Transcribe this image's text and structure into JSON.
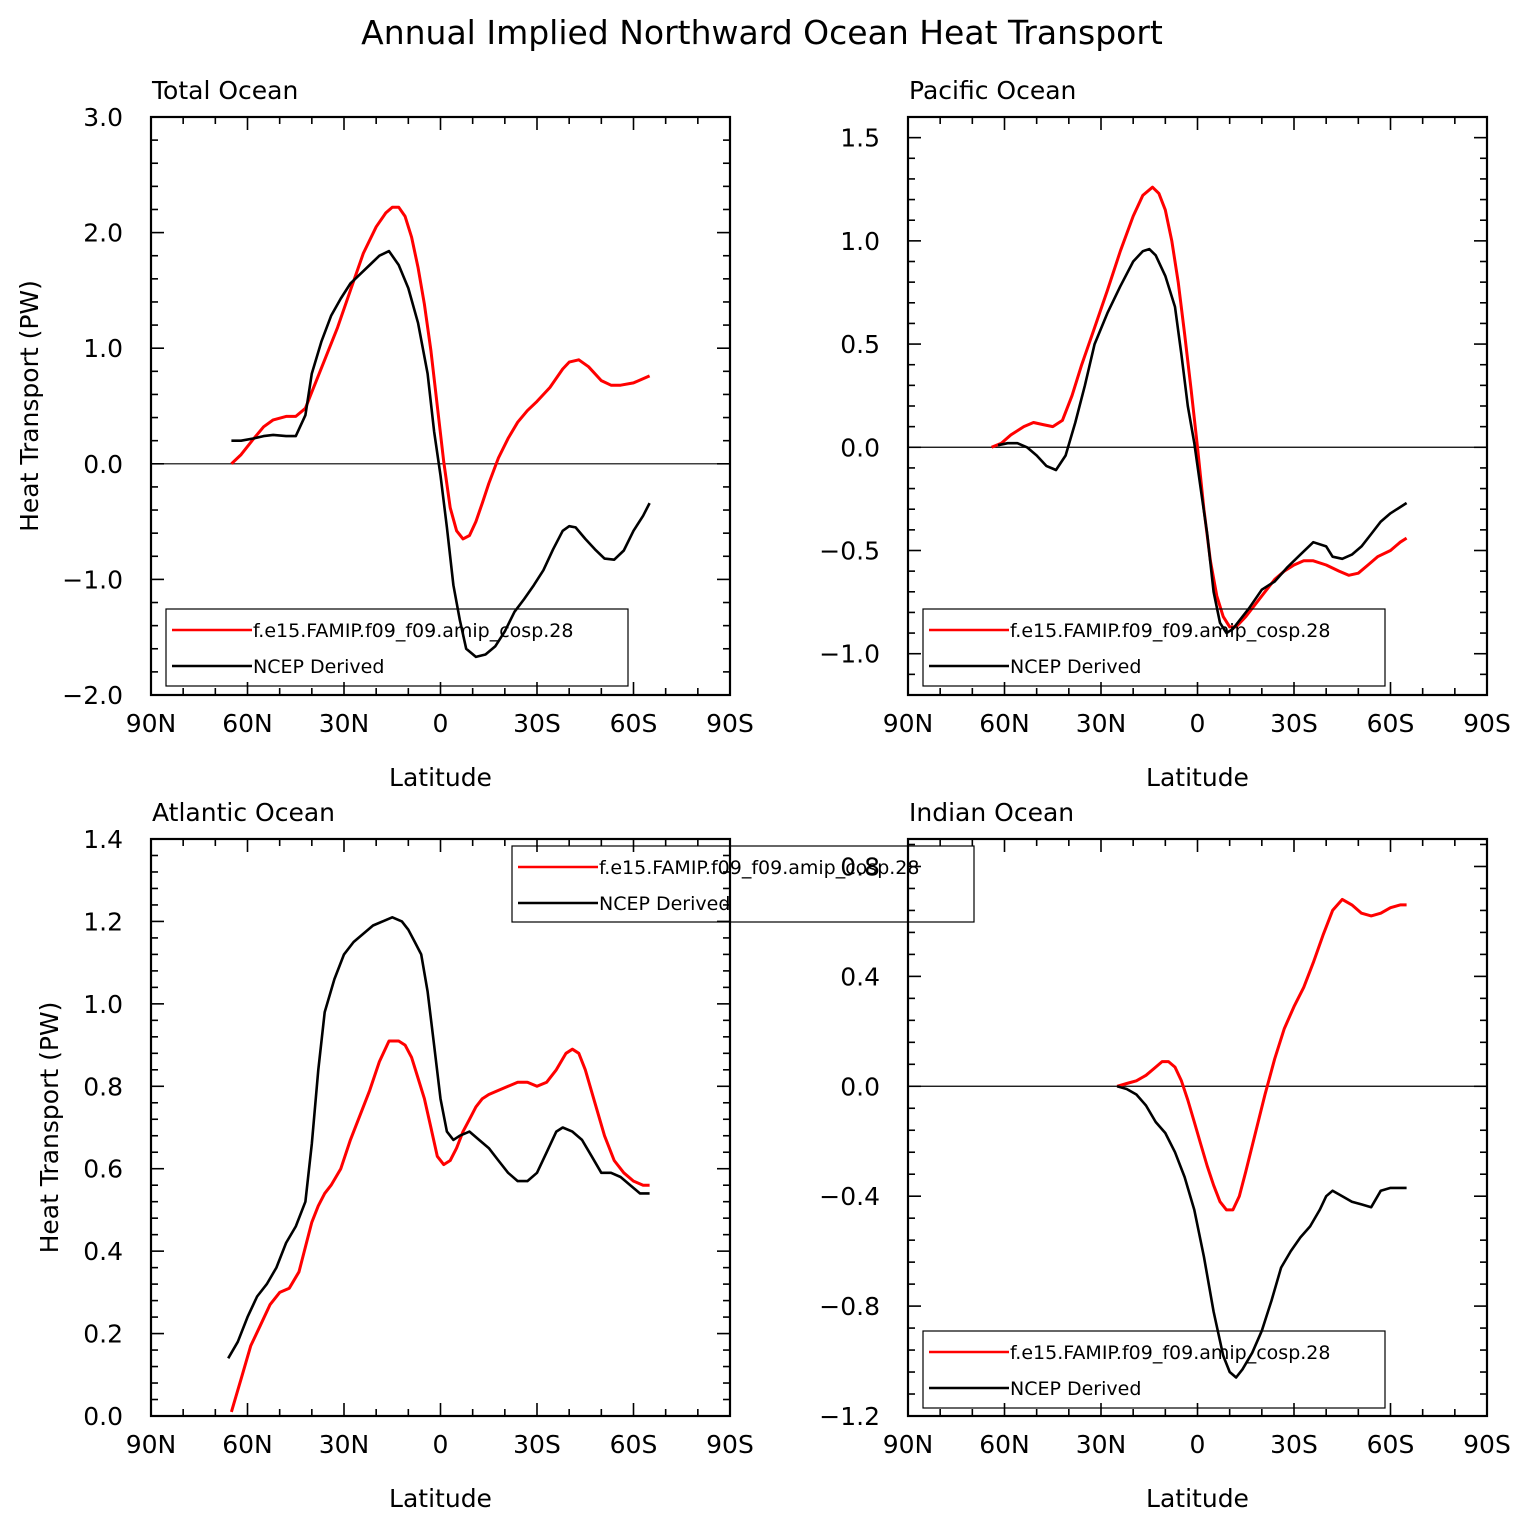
{
  "title": "Annual Implied Northward Ocean Heat Transport",
  "colors": {
    "model": "#ff0000",
    "obs": "#000000"
  },
  "legend": {
    "model": "f.e15.FAMIP.f09_f09.amip_cosp.28",
    "obs": "NCEP Derived"
  },
  "chart_data": [
    {
      "type": "line",
      "title": "Total Ocean",
      "xlabel": "Latitude",
      "ylabel": "Heat Transport (PW)",
      "xlim": [
        90,
        -90
      ],
      "ylim": [
        -2.0,
        3.0
      ],
      "xticks": [
        90,
        60,
        30,
        0,
        -30,
        -60,
        -90
      ],
      "xticklabels": [
        "90N",
        "60N",
        "30N",
        "0",
        "30S",
        "60S",
        "90S"
      ],
      "yticks": [
        -2.0,
        -1.0,
        0.0,
        1.0,
        2.0,
        3.0
      ],
      "yticklabels": [
        "−2.0",
        "−1.0",
        "0.0",
        "1.0",
        "2.0",
        "3.0"
      ],
      "legend_position": "bottom-left",
      "series": [
        {
          "name": "f.e15.FAMIP.f09_f09.amip_cosp.28",
          "x": [
            65,
            62,
            58,
            55,
            52,
            48,
            45,
            42,
            40,
            36,
            32,
            28,
            24,
            20,
            17,
            15,
            13,
            11,
            9,
            7,
            5,
            3,
            1,
            -1,
            -3,
            -5,
            -7,
            -9,
            -11,
            -13,
            -15,
            -18,
            -21,
            -24,
            -27,
            -30,
            -34,
            -38,
            -40,
            -43,
            -46,
            -50,
            -53,
            -56,
            -60,
            -65
          ],
          "y": [
            0.0,
            0.08,
            0.22,
            0.32,
            0.38,
            0.41,
            0.41,
            0.48,
            0.62,
            0.9,
            1.18,
            1.5,
            1.82,
            2.05,
            2.17,
            2.22,
            2.22,
            2.14,
            1.96,
            1.7,
            1.38,
            0.98,
            0.5,
            0.02,
            -0.38,
            -0.58,
            -0.65,
            -0.62,
            -0.5,
            -0.34,
            -0.17,
            0.05,
            0.22,
            0.36,
            0.46,
            0.54,
            0.66,
            0.82,
            0.88,
            0.9,
            0.84,
            0.72,
            0.68,
            0.68,
            0.7,
            0.76
          ]
        },
        {
          "name": "NCEP Derived",
          "x": [
            65,
            62,
            58,
            55,
            52,
            48,
            45,
            42,
            40,
            37,
            34,
            31,
            28,
            25,
            22,
            19,
            16,
            13,
            10,
            7,
            4,
            2,
            0,
            -2,
            -4,
            -6,
            -8,
            -11,
            -14,
            -17,
            -20,
            -23,
            -26,
            -29,
            -32,
            -35,
            -38,
            -40,
            -42,
            -45,
            -48,
            -51,
            -54,
            -57,
            -60,
            -63,
            -65
          ],
          "y": [
            0.2,
            0.2,
            0.22,
            0.24,
            0.25,
            0.24,
            0.24,
            0.42,
            0.78,
            1.06,
            1.28,
            1.43,
            1.56,
            1.64,
            1.72,
            1.8,
            1.84,
            1.72,
            1.52,
            1.22,
            0.78,
            0.28,
            -0.1,
            -0.55,
            -1.05,
            -1.35,
            -1.6,
            -1.67,
            -1.65,
            -1.58,
            -1.45,
            -1.28,
            -1.17,
            -1.05,
            -0.92,
            -0.74,
            -0.58,
            -0.54,
            -0.55,
            -0.65,
            -0.74,
            -0.82,
            -0.83,
            -0.75,
            -0.58,
            -0.45,
            -0.34
          ]
        }
      ]
    },
    {
      "type": "line",
      "title": "Pacific Ocean",
      "xlabel": "Latitude",
      "ylabel": "",
      "xlim": [
        90,
        -90
      ],
      "ylim": [
        -1.2,
        1.6
      ],
      "xticks": [
        90,
        60,
        30,
        0,
        -30,
        -60,
        -90
      ],
      "xticklabels": [
        "90N",
        "60N",
        "30N",
        "0",
        "30S",
        "60S",
        "90S"
      ],
      "yticks": [
        -1.0,
        -0.5,
        0.0,
        0.5,
        1.0,
        1.5
      ],
      "yticklabels": [
        "−1.0",
        "−0.5",
        "0.0",
        "0.5",
        "1.0",
        "1.5"
      ],
      "legend_position": "bottom-left",
      "series": [
        {
          "name": "f.e15.FAMIP.f09_f09.amip_cosp.28",
          "x": [
            64,
            61,
            58,
            54,
            51,
            48,
            45,
            42,
            39,
            36,
            32,
            28,
            24,
            20,
            17,
            14,
            12,
            10,
            8,
            6,
            4,
            2,
            0,
            -2,
            -4,
            -6,
            -8,
            -10,
            -12,
            -15,
            -18,
            -21,
            -24,
            -27,
            -30,
            -33,
            -36,
            -40,
            -44,
            -47,
            -50,
            -53,
            -56,
            -60,
            -63,
            -65
          ],
          "y": [
            0.0,
            0.02,
            0.06,
            0.1,
            0.12,
            0.11,
            0.1,
            0.13,
            0.25,
            0.4,
            0.58,
            0.76,
            0.95,
            1.12,
            1.22,
            1.26,
            1.23,
            1.15,
            1.0,
            0.8,
            0.55,
            0.28,
            0.0,
            -0.3,
            -0.55,
            -0.72,
            -0.82,
            -0.87,
            -0.87,
            -0.82,
            -0.76,
            -0.7,
            -0.64,
            -0.6,
            -0.57,
            -0.55,
            -0.55,
            -0.57,
            -0.6,
            -0.62,
            -0.61,
            -0.57,
            -0.53,
            -0.5,
            -0.46,
            -0.44
          ]
        },
        {
          "name": "NCEP Derived",
          "x": [
            62,
            59,
            56,
            53,
            50,
            47,
            44,
            41,
            38,
            35,
            32,
            28,
            24,
            20,
            17,
            15,
            13,
            10,
            7,
            5,
            3,
            1,
            -1,
            -3,
            -5,
            -7,
            -9,
            -11,
            -13,
            -16,
            -20,
            -24,
            -28,
            -32,
            -36,
            -40,
            -42,
            -45,
            -48,
            -51,
            -54,
            -57,
            -60,
            -63,
            -65
          ],
          "y": [
            0.01,
            0.02,
            0.02,
            0.0,
            -0.04,
            -0.09,
            -0.11,
            -0.04,
            0.12,
            0.3,
            0.5,
            0.65,
            0.78,
            0.9,
            0.95,
            0.96,
            0.93,
            0.83,
            0.68,
            0.45,
            0.2,
            0.02,
            -0.2,
            -0.42,
            -0.7,
            -0.85,
            -0.9,
            -0.88,
            -0.84,
            -0.78,
            -0.69,
            -0.65,
            -0.58,
            -0.52,
            -0.46,
            -0.48,
            -0.53,
            -0.54,
            -0.52,
            -0.48,
            -0.42,
            -0.36,
            -0.32,
            -0.29,
            -0.27
          ]
        }
      ]
    },
    {
      "type": "line",
      "title": "Atlantic Ocean",
      "xlabel": "Latitude",
      "ylabel": "Heat Transport (PW)",
      "xlim": [
        90,
        -90
      ],
      "ylim": [
        0.0,
        1.4
      ],
      "xticks": [
        90,
        60,
        30,
        0,
        -30,
        -60,
        -90
      ],
      "xticklabels": [
        "90N",
        "60N",
        "30N",
        "0",
        "30S",
        "60S",
        "90S"
      ],
      "yticks": [
        0.0,
        0.2,
        0.4,
        0.6,
        0.8,
        1.0,
        1.2,
        1.4
      ],
      "yticklabels": [
        "0.0",
        "0.2",
        "0.4",
        "0.6",
        "0.8",
        "1.0",
        "1.2",
        "1.4"
      ],
      "legend_position": "top-center",
      "series": [
        {
          "name": "f.e15.FAMIP.f09_f09.amip_cosp.28",
          "x": [
            65,
            62,
            59,
            56,
            53,
            50,
            47,
            44,
            42,
            40,
            38,
            36,
            34,
            31,
            28,
            25,
            22,
            19,
            16,
            13,
            11,
            9,
            7,
            5,
            3,
            1,
            -1,
            -3,
            -5,
            -7,
            -9,
            -11,
            -13,
            -15,
            -18,
            -21,
            -24,
            -27,
            -30,
            -33,
            -36,
            -39,
            -41,
            -43,
            -45,
            -48,
            -51,
            -54,
            -57,
            -60,
            -63,
            -65
          ],
          "y": [
            0.01,
            0.09,
            0.17,
            0.22,
            0.27,
            0.3,
            0.31,
            0.35,
            0.41,
            0.47,
            0.51,
            0.54,
            0.56,
            0.6,
            0.67,
            0.73,
            0.79,
            0.86,
            0.91,
            0.91,
            0.9,
            0.87,
            0.82,
            0.77,
            0.7,
            0.63,
            0.61,
            0.62,
            0.65,
            0.69,
            0.72,
            0.75,
            0.77,
            0.78,
            0.79,
            0.8,
            0.81,
            0.81,
            0.8,
            0.81,
            0.84,
            0.88,
            0.89,
            0.88,
            0.84,
            0.76,
            0.68,
            0.62,
            0.59,
            0.57,
            0.56,
            0.56
          ]
        },
        {
          "name": "NCEP Derived",
          "x": [
            66,
            63,
            60,
            57,
            54,
            51,
            48,
            45,
            42,
            40,
            38,
            36,
            33,
            30,
            27,
            24,
            21,
            18,
            15,
            12,
            10,
            8,
            6,
            4,
            2,
            0,
            -2,
            -4,
            -6,
            -9,
            -12,
            -15,
            -18,
            -21,
            -24,
            -27,
            -30,
            -33,
            -36,
            -38,
            -41,
            -44,
            -47,
            -50,
            -53,
            -56,
            -59,
            -62,
            -65
          ],
          "y": [
            0.14,
            0.18,
            0.24,
            0.29,
            0.32,
            0.36,
            0.42,
            0.46,
            0.52,
            0.66,
            0.84,
            0.98,
            1.06,
            1.12,
            1.15,
            1.17,
            1.19,
            1.2,
            1.21,
            1.2,
            1.18,
            1.15,
            1.12,
            1.03,
            0.9,
            0.77,
            0.69,
            0.67,
            0.68,
            0.69,
            0.67,
            0.65,
            0.62,
            0.59,
            0.57,
            0.57,
            0.59,
            0.64,
            0.69,
            0.7,
            0.69,
            0.67,
            0.63,
            0.59,
            0.59,
            0.58,
            0.56,
            0.54,
            0.54
          ]
        }
      ]
    },
    {
      "type": "line",
      "title": "Indian Ocean",
      "xlabel": "Latitude",
      "ylabel": "",
      "xlim": [
        90,
        -90
      ],
      "ylim": [
        -1.2,
        0.9
      ],
      "xticks": [
        90,
        60,
        30,
        0,
        -30,
        -60,
        -90
      ],
      "xticklabels": [
        "90N",
        "60N",
        "30N",
        "0",
        "30S",
        "60S",
        "90S"
      ],
      "yticks": [
        -1.2,
        -0.8,
        -0.4,
        0.0,
        0.4,
        0.8
      ],
      "yticklabels": [
        "−1.2",
        "−0.8",
        "−0.4",
        "0.0",
        "0.4",
        "0.8"
      ],
      "legend_position": "bottom-left",
      "series": [
        {
          "name": "f.e15.FAMIP.f09_f09.amip_cosp.28",
          "x": [
            25,
            22,
            19,
            16,
            13,
            11,
            9,
            7,
            5,
            3,
            1,
            -1,
            -3,
            -5,
            -7,
            -9,
            -11,
            -13,
            -15,
            -18,
            -21,
            -24,
            -27,
            -30,
            -33,
            -36,
            -39,
            -42,
            -45,
            -48,
            -51,
            -54,
            -57,
            -60,
            -63,
            -65
          ],
          "y": [
            0.0,
            0.01,
            0.02,
            0.04,
            0.07,
            0.09,
            0.09,
            0.07,
            0.02,
            -0.05,
            -0.13,
            -0.21,
            -0.29,
            -0.36,
            -0.42,
            -0.45,
            -0.45,
            -0.4,
            -0.31,
            -0.17,
            -0.03,
            0.1,
            0.21,
            0.29,
            0.36,
            0.45,
            0.55,
            0.64,
            0.68,
            0.66,
            0.63,
            0.62,
            0.63,
            0.65,
            0.66,
            0.66
          ]
        },
        {
          "name": "NCEP Derived",
          "x": [
            25,
            22,
            19,
            16,
            13,
            10,
            7,
            4,
            1,
            -2,
            -5,
            -8,
            -10,
            -12,
            -14,
            -17,
            -20,
            -23,
            -26,
            -29,
            -32,
            -35,
            -38,
            -40,
            -42,
            -45,
            -48,
            -51,
            -54,
            -57,
            -60,
            -63,
            -65
          ],
          "y": [
            0.0,
            -0.01,
            -0.03,
            -0.07,
            -0.13,
            -0.17,
            -0.24,
            -0.33,
            -0.45,
            -0.62,
            -0.82,
            -0.98,
            -1.04,
            -1.06,
            -1.03,
            -0.97,
            -0.89,
            -0.78,
            -0.66,
            -0.6,
            -0.55,
            -0.51,
            -0.45,
            -0.4,
            -0.38,
            -0.4,
            -0.42,
            -0.43,
            -0.44,
            -0.38,
            -0.37,
            -0.37,
            -0.37
          ]
        }
      ]
    }
  ]
}
